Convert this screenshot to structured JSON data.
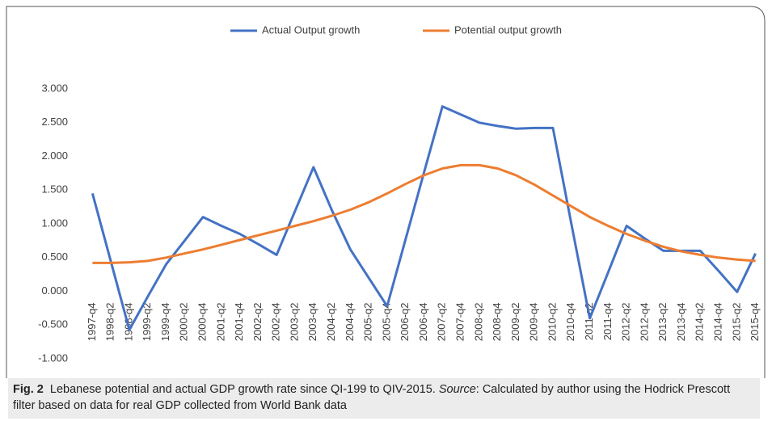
{
  "chart_data": {
    "type": "line",
    "categories": [
      "1997-q4",
      "1998-q2",
      "1998-q4",
      "1999-q2",
      "1999-q4",
      "2000-q2",
      "2000-q4",
      "2001-q2",
      "2001-q4",
      "2002-q2",
      "2002-q4",
      "2003-q2",
      "2003-q4",
      "2004-q2",
      "2004-q4",
      "2005-q2",
      "2005-q4",
      "2006-q2",
      "2006-q4",
      "2007-q2",
      "2007-q4",
      "2008-q2",
      "2008-q4",
      "2009-q2",
      "2009-q4",
      "2010-q2",
      "2010-q4",
      "2011-q2",
      "2011-q4",
      "2012-q2",
      "2012-q4",
      "2013-q2",
      "2013-q4",
      "2014-q2",
      "2014-q4",
      "2015-q2",
      "2015-q4"
    ],
    "series": [
      {
        "name": "Actual Output growth",
        "color": "#4472c4",
        "values": [
          1.45,
          0.44,
          -0.57,
          -0.08,
          0.4,
          0.75,
          1.1,
          0.97,
          0.85,
          0.7,
          0.54,
          1.19,
          1.84,
          1.2,
          0.62,
          0.2,
          -0.22,
          0.77,
          1.76,
          2.74,
          2.62,
          2.5,
          2.45,
          2.41,
          2.42,
          2.42,
          1.0,
          -0.4,
          0.28,
          0.97,
          0.78,
          0.6,
          0.6,
          0.6,
          0.3,
          -0.01,
          0.56
        ]
      },
      {
        "name": "Potential output growth",
        "color": "#ed7d31",
        "values": [
          0.42,
          0.42,
          0.43,
          0.45,
          0.5,
          0.56,
          0.62,
          0.69,
          0.76,
          0.83,
          0.9,
          0.97,
          1.04,
          1.12,
          1.21,
          1.32,
          1.45,
          1.59,
          1.72,
          1.82,
          1.87,
          1.87,
          1.82,
          1.72,
          1.58,
          1.42,
          1.26,
          1.1,
          0.97,
          0.85,
          0.75,
          0.66,
          0.59,
          0.54,
          0.5,
          0.47,
          0.45
        ]
      }
    ],
    "ylim": [
      -1,
      3
    ],
    "yticks": [
      {
        "value": -1,
        "label": "-1.000"
      },
      {
        "value": -0.5,
        "label": "-0.500"
      },
      {
        "value": 0,
        "label": "0.000"
      },
      {
        "value": 0.5,
        "label": "0.500"
      },
      {
        "value": 1,
        "label": "1.000"
      },
      {
        "value": 1.5,
        "label": "1.500"
      },
      {
        "value": 2,
        "label": "2.000"
      },
      {
        "value": 2.5,
        "label": "2.500"
      },
      {
        "value": 3,
        "label": "3.000"
      }
    ],
    "grid": false,
    "legend": "top"
  },
  "caption": {
    "figure_label": "Fig. 2",
    "text": "Lebanese potential and actual GDP growth rate since QI-199 to QIV-2015. ",
    "source_label": "Source",
    "source_text": ": Calculated by author using the Hodrick Prescott filter based on data for real GDP collected from World Bank data"
  }
}
